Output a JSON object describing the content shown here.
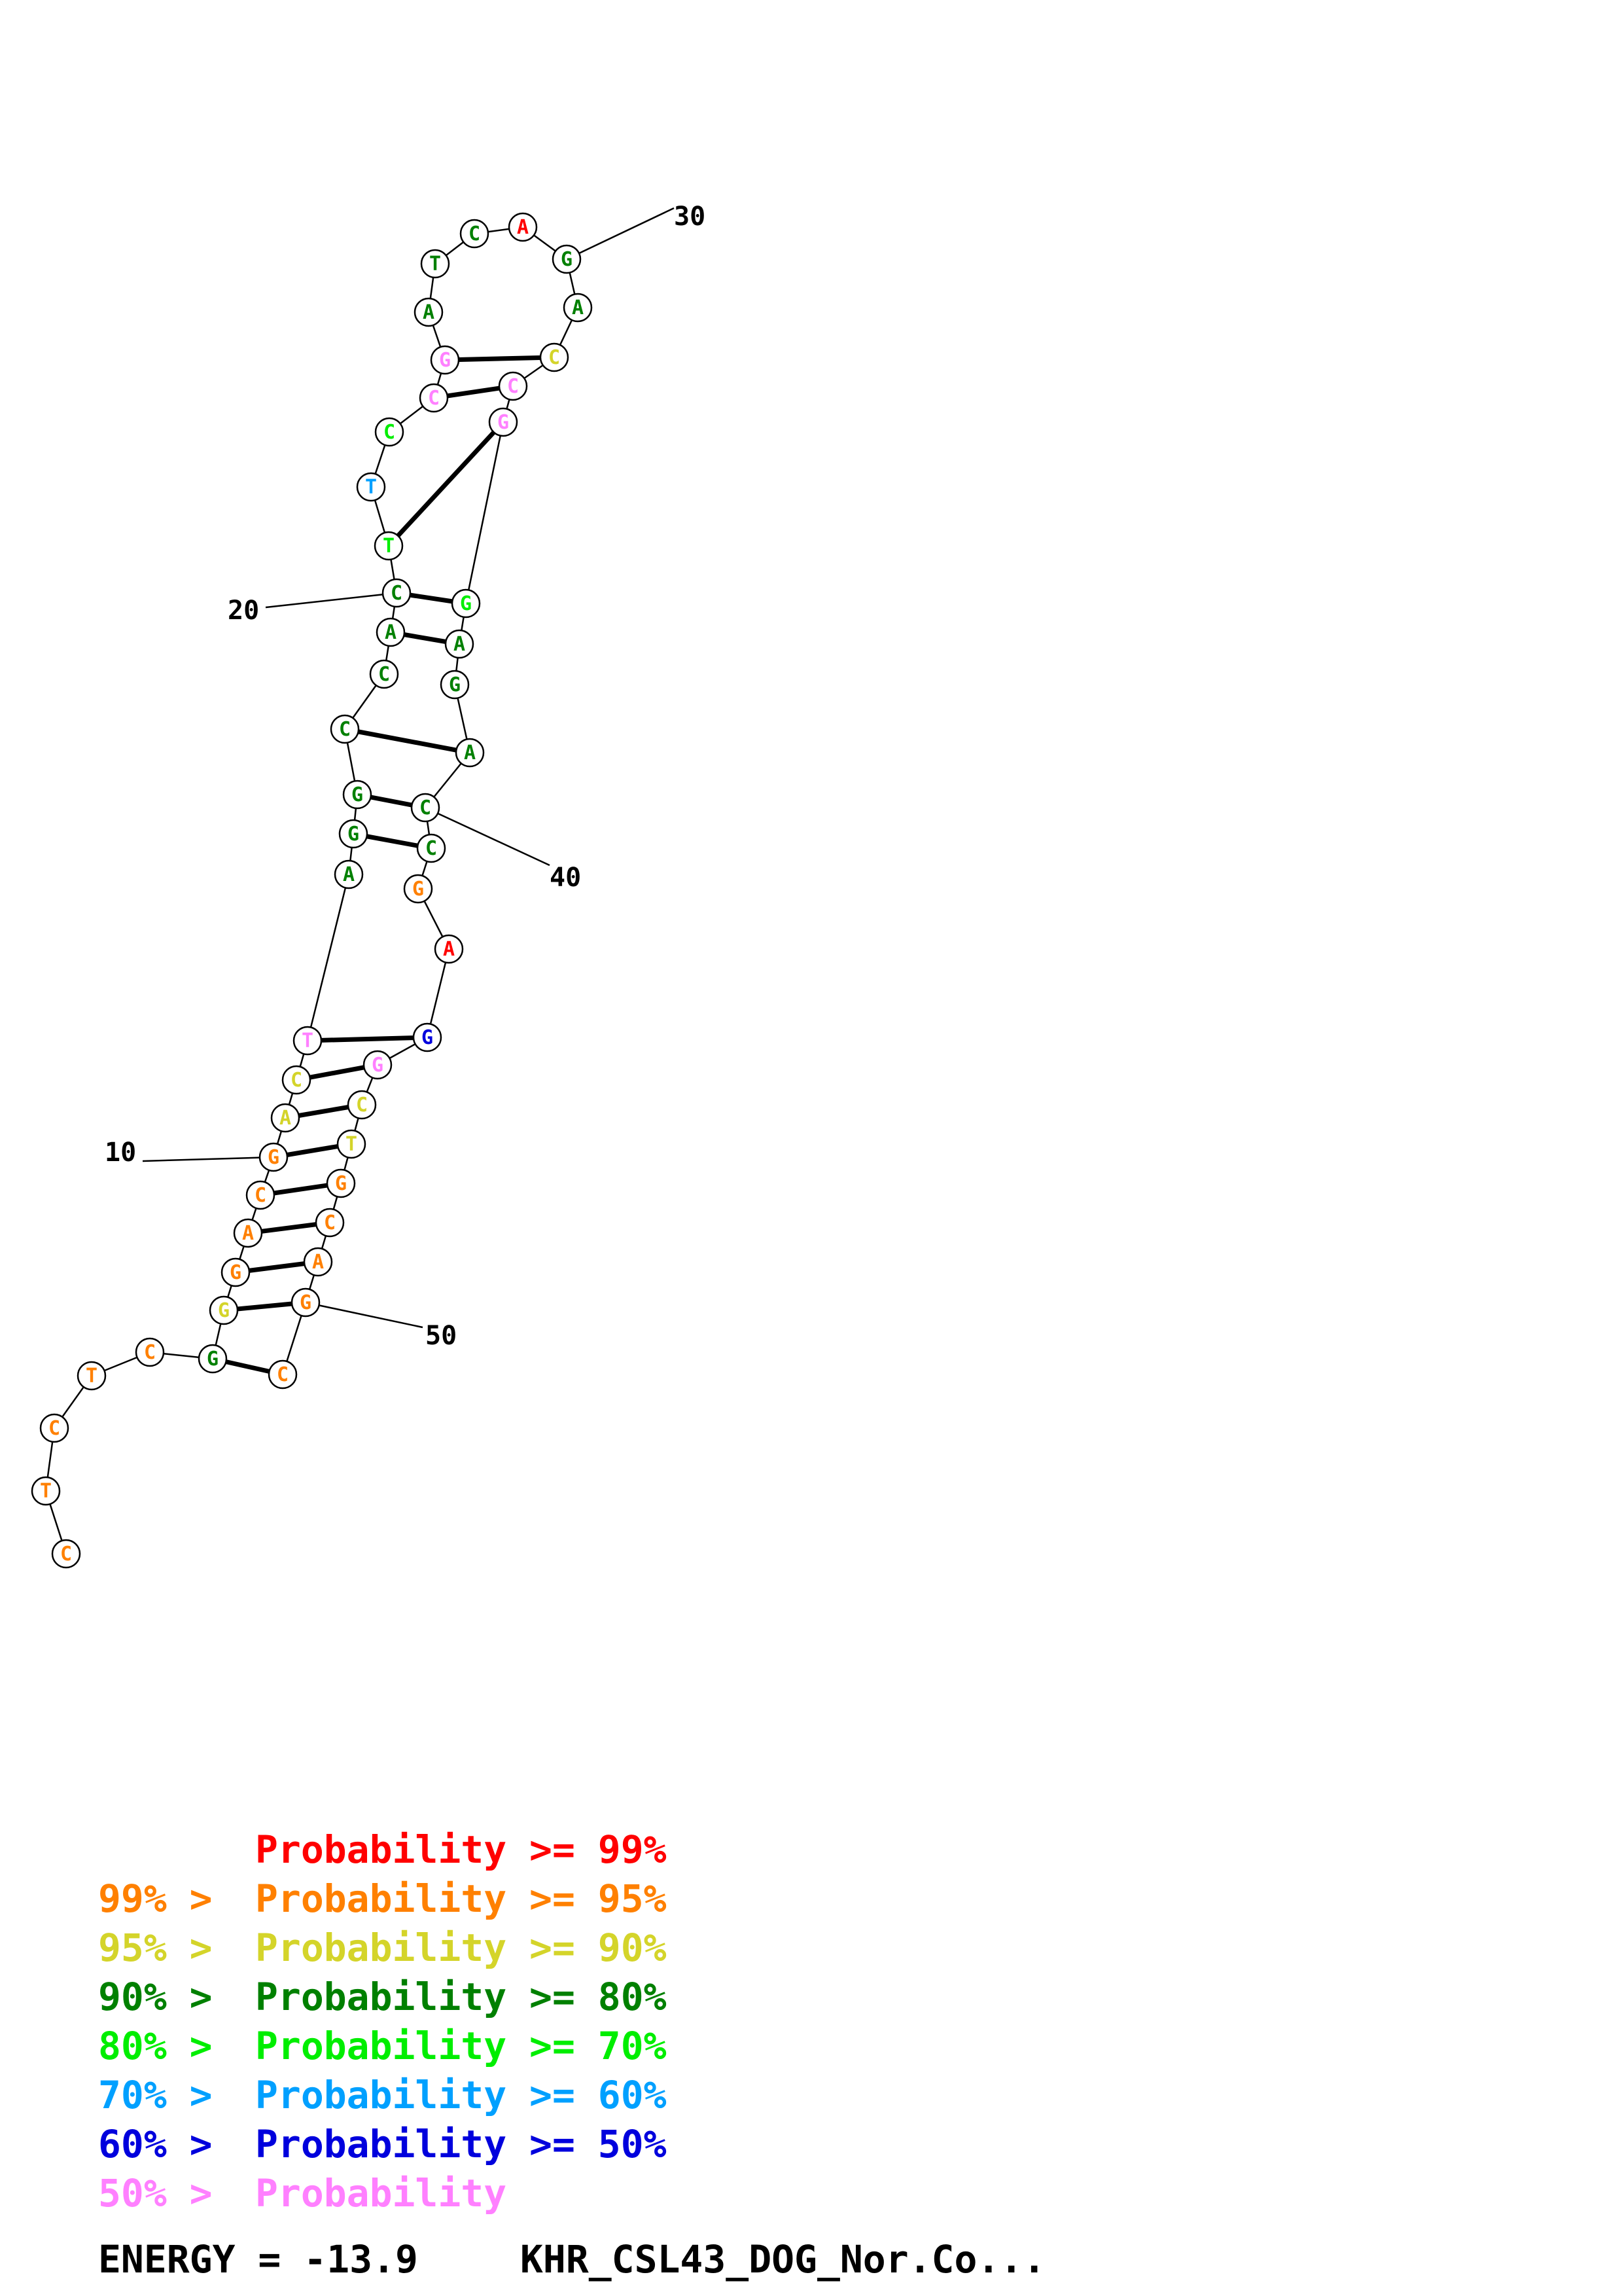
{
  "sequence": "CTCTCGGGACGACTAGGCCACTTCCGATCAGACCGGAGACCGAGGCTGCAGC",
  "levels": {
    "r": "#ff0000",
    "o": "#ff8000",
    "y": "#d4d42a",
    "dg": "#008000",
    "lg": "#00ee00",
    "sb": "#00a0ff",
    "b": "#0000dd",
    "p": "#ff80ff"
  },
  "base_levels": [
    "o",
    "o",
    "o",
    "o",
    "o",
    "dg",
    "y",
    "o",
    "o",
    "o",
    "o",
    "y",
    "y",
    "p",
    "dg",
    "dg",
    "dg",
    "dg",
    "dg",
    "dg",
    "dg",
    "lg",
    "sb",
    "lg",
    "p",
    "p",
    "dg",
    "dg",
    "dg",
    "r",
    "dg",
    "dg",
    "y",
    "p",
    "p",
    "lg",
    "dg",
    "dg",
    "dg",
    "dg",
    "dg",
    "o",
    "r",
    "b",
    "p",
    "y",
    "y",
    "o",
    "o",
    "o",
    "o",
    "o"
  ],
  "pairs": [
    [
      6,
      52
    ],
    [
      7,
      51
    ],
    [
      8,
      50
    ],
    [
      9,
      49
    ],
    [
      10,
      48
    ],
    [
      11,
      47
    ],
    [
      12,
      46
    ],
    [
      13,
      45
    ],
    [
      14,
      44
    ],
    [
      16,
      41
    ],
    [
      17,
      40
    ],
    [
      18,
      39
    ],
    [
      20,
      37
    ],
    [
      21,
      36
    ],
    [
      22,
      35
    ],
    [
      25,
      34
    ],
    [
      26,
      33
    ]
  ],
  "numbers": [
    {
      "label": "10",
      "base": 11
    },
    {
      "label": "20",
      "base": 21
    },
    {
      "label": "30",
      "base": 31
    },
    {
      "label": "40",
      "base": 40
    },
    {
      "label": "50",
      "base": 51
    }
  ],
  "legend": [
    {
      "left": "",
      "right": "Probability >= 99%",
      "level": "r"
    },
    {
      "left": "99% >",
      "right": "Probability >= 95%",
      "level": "o"
    },
    {
      "left": "95% >",
      "right": "Probability >= 90%",
      "level": "y"
    },
    {
      "left": "90% >",
      "right": "Probability >= 80%",
      "level": "dg"
    },
    {
      "left": "80% >",
      "right": "Probability >= 70%",
      "level": "lg"
    },
    {
      "left": "70% >",
      "right": "Probability >= 60%",
      "level": "sb"
    },
    {
      "left": "60% >",
      "right": "Probability >= 50%",
      "level": "b"
    },
    {
      "left": "50% >",
      "right": "Probability",
      "level": "p"
    }
  ],
  "energy_label": "ENERGY = -13.9",
  "sequence_name": "KHR_CSL43_DOG_Nor.Co..."
}
